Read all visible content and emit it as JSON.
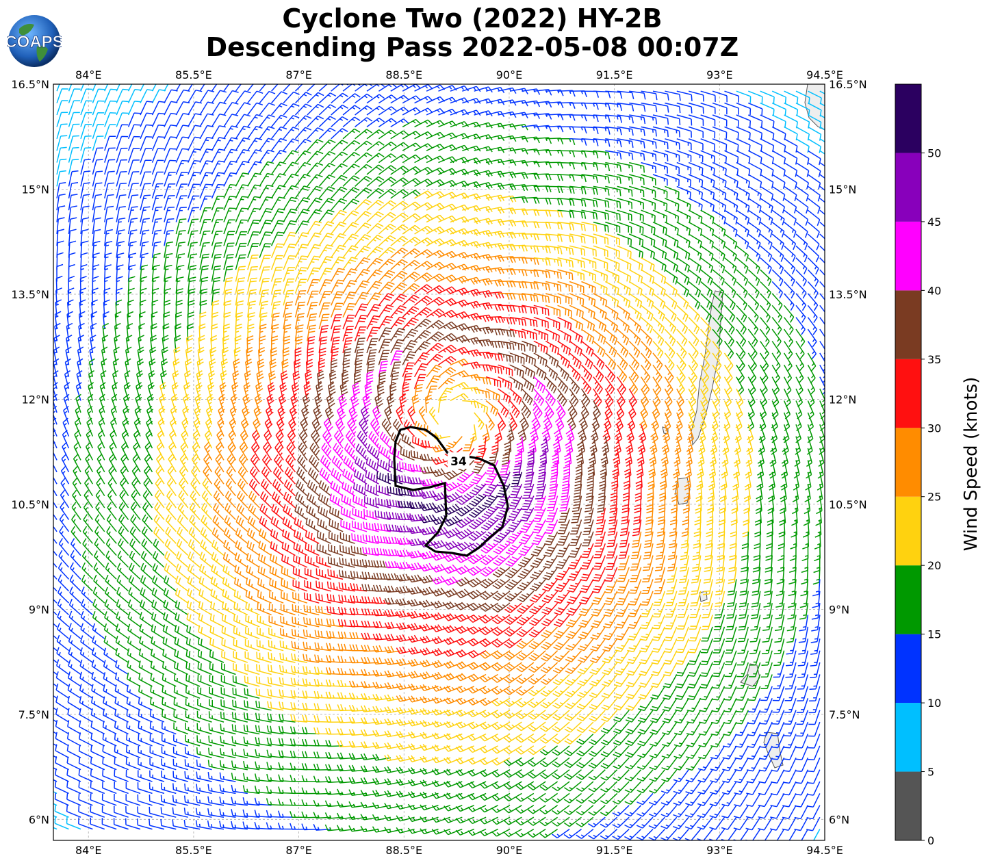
{
  "title": {
    "line1": "Cyclone Two (2022) HY-2B",
    "line2": "Descending Pass 2022-05-08 00:07Z"
  },
  "logo": {
    "text": "COAPS",
    "icon": "globe-icon"
  },
  "map": {
    "lon_range": [
      83.5,
      94.5
    ],
    "lat_range": [
      5.7,
      16.5
    ],
    "lon_ticks": [
      "84°E",
      "85.5°E",
      "87°E",
      "88.5°E",
      "90°E",
      "91.5°E",
      "93°E",
      "94.5°E"
    ],
    "lat_ticks": [
      "16.5°N",
      "15°N",
      "13.5°N",
      "12°N",
      "10.5°N",
      "9°N",
      "7.5°N",
      "6°N"
    ],
    "lon_values": [
      84,
      85.5,
      87,
      88.5,
      90,
      91.5,
      93,
      94.5
    ],
    "lat_values": [
      16.5,
      15,
      13.5,
      12,
      10.5,
      9,
      7.5,
      6
    ],
    "grid": true,
    "cyclone_center": {
      "lon": 89.2,
      "lat": 11.7
    },
    "contour_label": "34",
    "land_color": "#eeeeee"
  },
  "colorbar": {
    "label": "Wind Speed (knots)",
    "ticks": [
      "0",
      "5",
      "10",
      "15",
      "20",
      "25",
      "30",
      "35",
      "40",
      "45",
      "50"
    ],
    "bins": [
      {
        "min": 0,
        "max": 5,
        "color": "#555555"
      },
      {
        "min": 5,
        "max": 10,
        "color": "#00bfff"
      },
      {
        "min": 10,
        "max": 15,
        "color": "#0033ff"
      },
      {
        "min": 15,
        "max": 20,
        "color": "#009900"
      },
      {
        "min": 20,
        "max": 25,
        "color": "#ffd20f"
      },
      {
        "min": 25,
        "max": 30,
        "color": "#ff8c00"
      },
      {
        "min": 30,
        "max": 35,
        "color": "#ff1010"
      },
      {
        "min": 35,
        "max": 40,
        "color": "#7a3b22"
      },
      {
        "min": 40,
        "max": 45,
        "color": "#ff00ff"
      },
      {
        "min": 45,
        "max": 50,
        "color": "#8800bb"
      },
      {
        "min": 50,
        "max": 55,
        "color": "#2b0060"
      }
    ]
  }
}
